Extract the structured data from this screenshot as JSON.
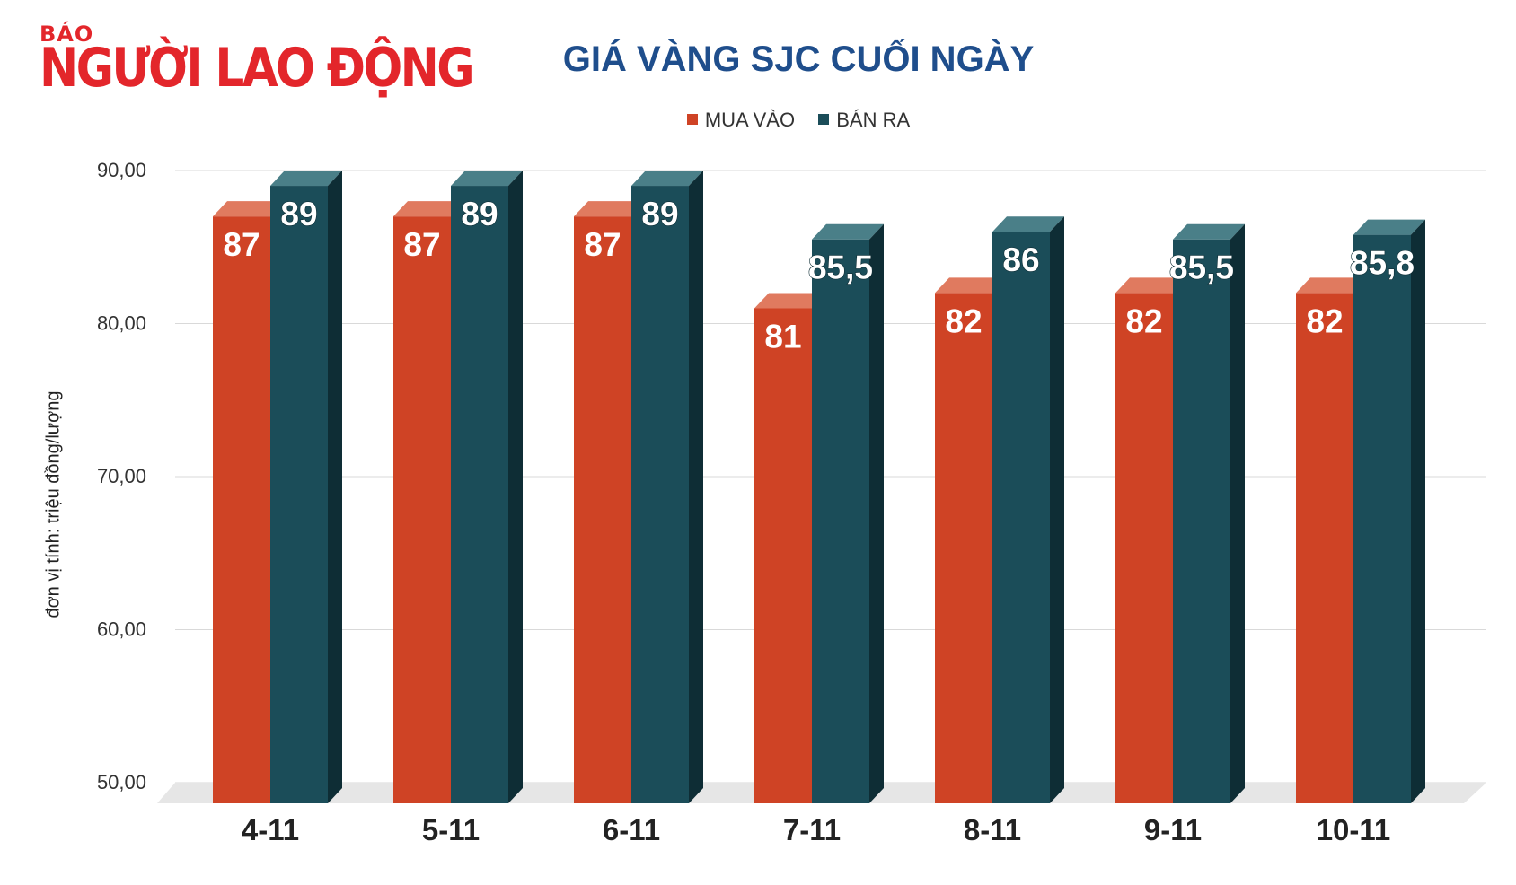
{
  "logo": {
    "small": "BÁO",
    "big": "NGƯỜI LAO ĐỘNG"
  },
  "colors": {
    "buy": "#cf4325",
    "buy_top": "#e07a5f",
    "buy_side": "#9e2f18",
    "sell": "#1b4d59",
    "sell_top": "#4a7f88",
    "sell_side": "#0e2d35",
    "title": "#1f4e8c",
    "floor": "#e6e6e6",
    "grid": "#d9d9d9"
  },
  "chart_data": {
    "type": "bar",
    "title": "GIÁ VÀNG SJC CUỐI NGÀY",
    "ylabel": "đơn vị tính: triệu đồng/lượng",
    "xlabel": "",
    "ylim": [
      50,
      90
    ],
    "yticks": [
      "50,00",
      "60,00",
      "70,00",
      "80,00",
      "90,00"
    ],
    "ytick_values": [
      50,
      60,
      70,
      80,
      90
    ],
    "grid": true,
    "legend_position": "top-center",
    "categories": [
      "4-11",
      "5-11",
      "6-11",
      "7-11",
      "8-11",
      "9-11",
      "10-11"
    ],
    "series": [
      {
        "name": "MUA VÀO",
        "values": [
          87,
          87,
          87,
          81,
          82,
          82,
          82
        ],
        "labels": [
          "87",
          "87",
          "87",
          "81",
          "82",
          "82",
          "82"
        ]
      },
      {
        "name": "BÁN RA",
        "values": [
          89,
          89,
          89,
          85.5,
          86,
          85.5,
          85.8
        ],
        "labels": [
          "89",
          "89",
          "89",
          "85,5",
          "86",
          "85,5",
          "85,8"
        ]
      }
    ]
  }
}
